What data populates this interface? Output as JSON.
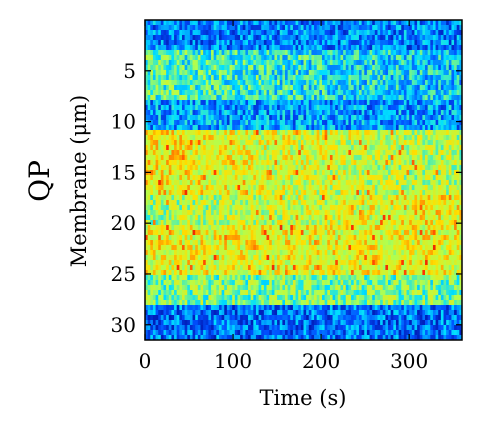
{
  "chart_data": {
    "type": "heatmap",
    "panel_label": "QP",
    "xlabel": "Time (s)",
    "ylabel": "Membrane (μm)",
    "xlim": [
      0,
      360
    ],
    "ylim": [
      31.5,
      0
    ],
    "xticks": [
      0,
      100,
      200,
      300
    ],
    "yticks": [
      5,
      10,
      15,
      20,
      25,
      30
    ],
    "grid": false,
    "colormap": "jet",
    "colormap_stops": [
      "#00008f",
      "#0050ff",
      "#00dfff",
      "#b0ff50",
      "#ffe000",
      "#ff3000",
      "#800000"
    ],
    "intensity_bands": [
      {
        "depth_start": 0,
        "depth_end": 3,
        "intensity": 0.22,
        "note": "low"
      },
      {
        "depth_start": 3,
        "depth_end": 8,
        "intensity": 0.3
      },
      {
        "depth_start": 8,
        "depth_end": 11,
        "intensity": 0.25
      },
      {
        "depth_start": 11,
        "depth_end": 17,
        "intensity": 0.62
      },
      {
        "depth_start": 17,
        "depth_end": 20,
        "intensity": 0.5
      },
      {
        "depth_start": 20,
        "depth_end": 25,
        "intensity": 0.6
      },
      {
        "depth_start": 25,
        "depth_end": 28,
        "intensity": 0.45
      },
      {
        "depth_start": 28,
        "depth_end": 31.5,
        "intensity": 0.2
      }
    ]
  }
}
